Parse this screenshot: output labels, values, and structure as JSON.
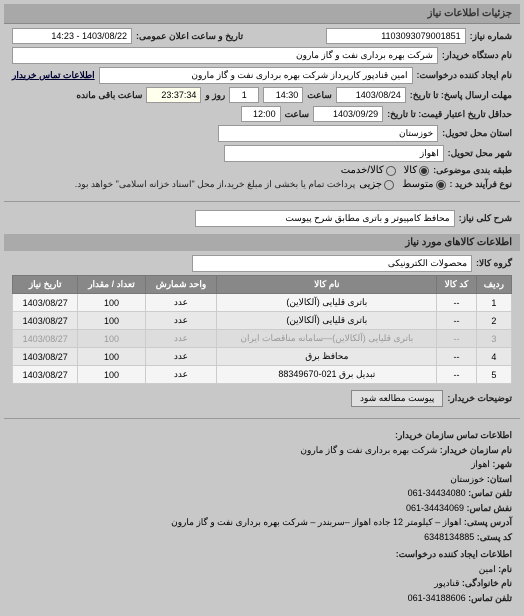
{
  "headerTitle": "جزئیات اطلاعات نیاز",
  "requestNumber": {
    "label": "شماره نیاز:",
    "value": "1103093079001851"
  },
  "publicDate": {
    "label": "تاریخ و ساعت اعلان عمومی:",
    "value": "1403/08/22 - 14:23"
  },
  "buyerName": {
    "label": "نام دستگاه خریدار:",
    "value": "شرکت بهره برداری نفت و گاز مارون"
  },
  "requesterName": {
    "label": "نام ایجاد کننده درخواست:",
    "value": "امین قنادپور کارپرداز شرکت بهره برداری نفت و گاز مارون"
  },
  "buyerContactLink": "اطلاعات تماس خریدار",
  "responseDeadline": {
    "label": "مهلت ارسال پاسخ: تا تاریخ:",
    "date": "1403/08/24",
    "timeLabel": "ساعت",
    "time": "14:30",
    "daysLabel": "روز و",
    "days": "1",
    "remainLabel": "ساعت باقی مانده",
    "remain": "23:37:34"
  },
  "validityDeadline": {
    "label": "حداقل تاریخ اعتبار قیمت: تا تاریخ:",
    "date": "1403/09/29",
    "timeLabel": "ساعت",
    "time": "12:00"
  },
  "province": {
    "label": "استان محل تحویل:",
    "value": "خوزستان"
  },
  "city": {
    "label": "شهر محل تحویل:",
    "value": "اهواز"
  },
  "subjectClass": {
    "label": "طبقه بندی موضوعی:",
    "options": [
      "کالا",
      "کالا/خدمت"
    ],
    "selected": 0
  },
  "processType": {
    "label": "نوع فرآیند خرید :",
    "options": [
      "متوسط",
      "جزیی"
    ],
    "selected": 0,
    "note": "پرداخت تمام یا بخشی از مبلغ خرید،از محل \"اسناد خزانه اسلامی\" خواهد بود."
  },
  "needDesc": {
    "label": "شرح کلی نیاز:",
    "value": "محافظ کامپیوتر و باتری مطابق شرح پیوست"
  },
  "itemsHeader": "اطلاعات کالاهای مورد نیاز",
  "itemGroup": {
    "label": "گروه کالا:",
    "value": "محصولات الکترونیکی"
  },
  "table": {
    "columns": [
      "ردیف",
      "کد کالا",
      "نام کالا",
      "واحد شمارش",
      "تعداد / مقدار",
      "تاریخ نیاز"
    ],
    "rows": [
      [
        "1",
        "--",
        "باتری قلیایی (آلکالاین)",
        "عدد",
        "100",
        "1403/08/27"
      ],
      [
        "2",
        "--",
        "باتری قلیایی (آلکالاین)",
        "عدد",
        "100",
        "1403/08/27"
      ],
      [
        "3",
        "--",
        "باتری قلیایی (آلکالاین)—سامانه مناقصات ایران",
        "عدد",
        "100",
        "1403/08/27"
      ],
      [
        "4",
        "--",
        "محافظ برق",
        "عدد",
        "100",
        "1403/08/27"
      ],
      [
        "5",
        "--",
        "تبدیل برق 021-88349670",
        "عدد",
        "100",
        "1403/08/27"
      ]
    ]
  },
  "buyerReq": {
    "label": "توضیحات خریدار:",
    "button": "پیوست مطالعه شود"
  },
  "contactHeader": "اطلاعات تماس سازمان خریدار:",
  "contact": {
    "orgName": {
      "label": "نام سازمان خریدار:",
      "value": "شرکت بهره برداری نفت و گاز مارون"
    },
    "city": {
      "label": "شهر:",
      "value": "اهواز"
    },
    "province": {
      "label": "استان:",
      "value": "خوزستان"
    },
    "phone": {
      "label": "تلفن تماس:",
      "value": "34434080-061"
    },
    "fax": {
      "label": "نفش تماس:",
      "value": "34434069-061"
    },
    "address": {
      "label": "آدرس پستی:",
      "value": "اهواز – کیلومتر 12 جاده اهواز –سربندر – شرکت بهره برداری نفت و گاز مارون"
    },
    "postalCode": {
      "label": "کد پستی:",
      "value": "6348134885"
    }
  },
  "creatorHeader": "اطلاعات ایجاد کننده درخواست:",
  "creator": {
    "name": {
      "label": "نام:",
      "value": "امین"
    },
    "family": {
      "label": "نام خانوادگی:",
      "value": "قنادپور"
    },
    "phone": {
      "label": "تلفن تماس:",
      "value": "34188606-061"
    }
  }
}
